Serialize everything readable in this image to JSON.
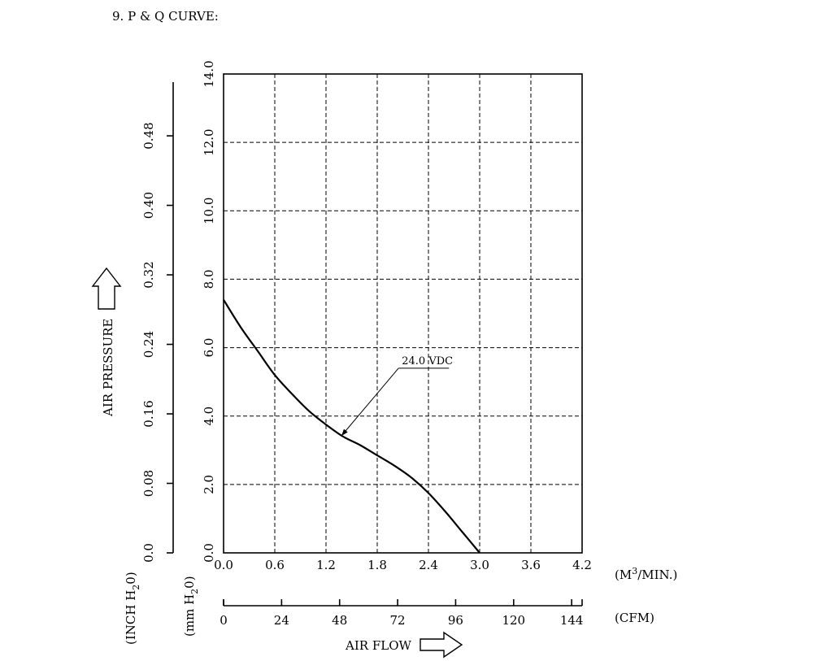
{
  "page": {
    "heading": "9. P & Q CURVE:"
  },
  "chart_data": {
    "type": "line",
    "ylabel": "AIR PRESSURE",
    "xlabel": "AIR FLOW",
    "x_axis_primary": {
      "unit_base": "(M",
      "unit_sup": "3",
      "unit_tail": "/MIN.)",
      "range": [
        0,
        4.2
      ],
      "ticks": [
        "0.0",
        "0.6",
        "1.2",
        "1.8",
        "2.4",
        "3.0",
        "3.6",
        "4.2"
      ],
      "tick_values": [
        0,
        0.6,
        1.2,
        1.8,
        2.4,
        3.0,
        3.6,
        4.2
      ]
    },
    "x_axis_secondary": {
      "unit": "(CFM)",
      "range": [
        0,
        148.32
      ],
      "ticks": [
        "0",
        "24",
        "48",
        "72",
        "96",
        "120",
        "144"
      ],
      "tick_values": [
        0,
        24,
        48,
        72,
        96,
        120,
        144
      ]
    },
    "y_axis_primary": {
      "unit_base": "(mm H",
      "unit_sub": "2",
      "unit_tail": "0)",
      "range": [
        0,
        14
      ],
      "ticks": [
        "0.0",
        "2.0",
        "4.0",
        "6.0",
        "8.0",
        "10.0",
        "12.0",
        "14.0"
      ],
      "tick_values": [
        0,
        2,
        4,
        6,
        8,
        10,
        12,
        14
      ]
    },
    "y_axis_secondary": {
      "unit_base": "(INCH H",
      "unit_sub": "2",
      "unit_tail": "0)",
      "range": [
        0,
        0.5512
      ],
      "ticks": [
        "0.0",
        "0.08",
        "0.16",
        "0.24",
        "0.32",
        "0.40",
        "0.48"
      ],
      "tick_values": [
        0,
        0.08,
        0.16,
        0.24,
        0.32,
        0.4,
        0.48
      ]
    },
    "grid": true,
    "series": [
      {
        "name": "24.0 VDC",
        "points": [
          [
            0.0,
            7.4
          ],
          [
            0.2,
            6.6
          ],
          [
            0.4,
            5.9
          ],
          [
            0.6,
            5.2
          ],
          [
            0.8,
            4.65
          ],
          [
            1.0,
            4.15
          ],
          [
            1.2,
            3.75
          ],
          [
            1.4,
            3.4
          ],
          [
            1.6,
            3.15
          ],
          [
            1.8,
            2.85
          ],
          [
            2.0,
            2.55
          ],
          [
            2.2,
            2.2
          ],
          [
            2.4,
            1.75
          ],
          [
            2.6,
            1.2
          ],
          [
            2.8,
            0.6
          ],
          [
            3.0,
            0.0
          ]
        ],
        "annotation_point": [
          1.38,
          3.42
        ],
        "label_anchor": [
          2.05,
          5.4
        ]
      }
    ]
  }
}
